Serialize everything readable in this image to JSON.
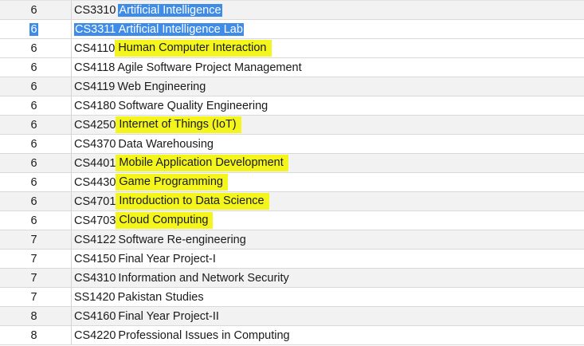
{
  "rows": [
    {
      "sem": "6",
      "code": "CS3310",
      "title": "Artificial Intelligence",
      "style": "selected"
    },
    {
      "sem": "6",
      "code": "CS3311",
      "title": "Artificial Intelligence Lab",
      "style": "selected-full"
    },
    {
      "sem": "6",
      "code": "CS4110",
      "title": "Human Computer Interaction",
      "style": "highlight"
    },
    {
      "sem": "6",
      "code": "CS4118",
      "title": "Agile Software Project Management",
      "style": "none"
    },
    {
      "sem": "6",
      "code": "CS4119",
      "title": "Web Engineering",
      "style": "none"
    },
    {
      "sem": "6",
      "code": "CS4180",
      "title": "Software Quality Engineering",
      "style": "none"
    },
    {
      "sem": "6",
      "code": "CS4250",
      "title": "Internet of Things (IoT)",
      "style": "highlight"
    },
    {
      "sem": "6",
      "code": "CS4370",
      "title": "Data Warehousing",
      "style": "none"
    },
    {
      "sem": "6",
      "code": "CS4401",
      "title": "Mobile Application Development",
      "style": "highlight"
    },
    {
      "sem": "6",
      "code": "CS4430",
      "title": "Game Programming",
      "style": "highlight"
    },
    {
      "sem": "6",
      "code": "CS4701",
      "title": "Introduction to Data Science",
      "style": "highlight"
    },
    {
      "sem": "6",
      "code": "CS4703",
      "title": "Cloud Computing",
      "style": "highlight"
    },
    {
      "sem": "7",
      "code": "CS4122",
      "title": "Software Re-engineering",
      "style": "none"
    },
    {
      "sem": "7",
      "code": "CS4150",
      "title": "Final Year Project-I",
      "style": "none"
    },
    {
      "sem": "7",
      "code": "CS4310",
      "title": "Information and Network Security",
      "style": "none"
    },
    {
      "sem": "7",
      "code": "SS1420",
      "title": "Pakistan Studies",
      "style": "none"
    },
    {
      "sem": "8",
      "code": "CS4160",
      "title": "Final Year Project-II",
      "style": "none"
    },
    {
      "sem": "8",
      "code": "CS4220",
      "title": "Professional Issues in Computing",
      "style": "none"
    }
  ],
  "colors": {
    "selection": "#3f8ce8",
    "highlighter": "#f5f51e",
    "row_alt": "#f2f2f2",
    "grid_line": "#d9d9d9"
  }
}
